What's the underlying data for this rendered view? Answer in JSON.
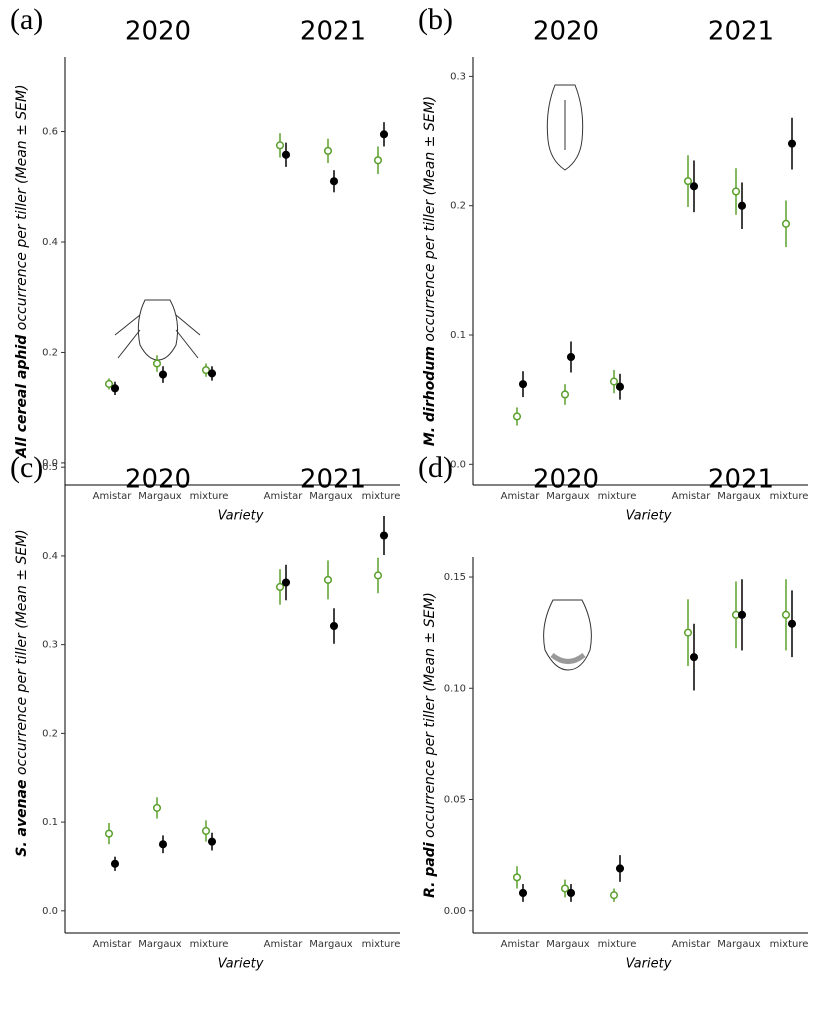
{
  "chart_data": [
    {
      "type": "dotplot",
      "panel_label": "(a)",
      "ylabel_species": "All cereal aphid",
      "ylabel": "occurrence per tiller (Mean ± SEM)",
      "xlabel": "Variety",
      "groups": [
        "2020",
        "2021"
      ],
      "categories": [
        "Amistar",
        "Margaux",
        "mixture",
        "Amistar",
        "Margaux",
        "mixture"
      ],
      "ylim": [
        -0.04,
        0.735
      ],
      "yticks": [
        {
          "value": 0,
          "label": "0.0"
        },
        0.2,
        0.4,
        0.6
      ],
      "series": [
        {
          "color": "#5aa02c",
          "marker": "open",
          "values": [
            0.143,
            0.18,
            0.168,
            0.575,
            0.565,
            0.548
          ],
          "errors": [
            0.01,
            0.015,
            0.012,
            0.022,
            0.022,
            0.025
          ]
        },
        {
          "color": "#000000",
          "marker": "filled",
          "values": [
            0.135,
            0.16,
            0.162,
            0.558,
            0.51,
            0.595
          ],
          "errors": [
            0.012,
            0.015,
            0.013,
            0.022,
            0.02,
            0.022
          ]
        }
      ]
    },
    {
      "type": "dotplot",
      "panel_label": "(b)",
      "ylabel_species": "M. dirhodum",
      "ylabel": "occurrence per tiller (Mean ± SEM)",
      "xlabel": "Variety",
      "groups": [
        "2020",
        "2021"
      ],
      "categories": [
        "Amistar",
        "Margaux",
        "mixture",
        "Amistar",
        "Margaux",
        "mixture"
      ],
      "ylim": [
        -0.016,
        0.315
      ],
      "yticks": [
        {
          "value": 0,
          "label": "0.0"
        },
        0.1,
        0.2,
        0.3
      ],
      "series": [
        {
          "color": "#5aa02c",
          "marker": "open",
          "values": [
            0.037,
            0.054,
            0.064,
            0.219,
            0.211,
            0.186
          ],
          "errors": [
            0.007,
            0.008,
            0.009,
            0.02,
            0.018,
            0.018
          ]
        },
        {
          "color": "#000000",
          "marker": "filled",
          "values": [
            0.062,
            0.083,
            0.06,
            0.215,
            0.2,
            0.248
          ],
          "errors": [
            0.01,
            0.012,
            0.01,
            0.02,
            0.018,
            0.02
          ]
        }
      ]
    },
    {
      "type": "dotplot",
      "panel_label": "(c)",
      "ylabel_species": "S. avenae",
      "ylabel": "occurrence per tiller (Mean ± SEM)",
      "xlabel": "Variety",
      "groups": [
        "2020",
        "2021"
      ],
      "categories": [
        "Amistar",
        "Margaux",
        "mixture",
        "Amistar",
        "Margaux",
        "mixture"
      ],
      "ylim": [
        -0.025,
        0.516
      ],
      "yticks": [
        {
          "value": 0,
          "label": "0.0"
        },
        0.1,
        0.2,
        0.3,
        0.4,
        0.5
      ],
      "series": [
        {
          "color": "#5aa02c",
          "marker": "open",
          "values": [
            0.087,
            0.116,
            0.09,
            0.365,
            0.373,
            0.378
          ],
          "errors": [
            0.012,
            0.012,
            0.012,
            0.02,
            0.022,
            0.02
          ]
        },
        {
          "color": "#000000",
          "marker": "filled",
          "values": [
            0.053,
            0.075,
            0.078,
            0.37,
            0.321,
            0.423
          ],
          "errors": [
            0.008,
            0.01,
            0.01,
            0.02,
            0.02,
            0.022
          ]
        }
      ]
    },
    {
      "type": "dotplot",
      "panel_label": "(d)",
      "ylabel_species": "R. padi",
      "ylabel": "occurrence per tiller (Mean ± SEM)",
      "xlabel": "Variety",
      "groups": [
        "2020",
        "2021"
      ],
      "categories": [
        "Amistar",
        "Margaux",
        "mixture",
        "Amistar",
        "Margaux",
        "mixture"
      ],
      "ylim": [
        -0.01,
        0.159
      ],
      "yticks": [
        {
          "value": 0,
          "label": "0.00"
        },
        0.05,
        {
          "value": 0.1,
          "label": "0.10"
        },
        0.15
      ],
      "series": [
        {
          "color": "#5aa02c",
          "marker": "open",
          "values": [
            0.015,
            0.01,
            0.007,
            0.125,
            0.133,
            0.133
          ],
          "errors": [
            0.005,
            0.004,
            0.003,
            0.015,
            0.015,
            0.016
          ]
        },
        {
          "color": "#000000",
          "marker": "filled",
          "values": [
            0.008,
            0.008,
            0.019,
            0.114,
            0.133,
            0.129
          ],
          "errors": [
            0.004,
            0.004,
            0.006,
            0.015,
            0.016,
            0.015
          ]
        }
      ]
    }
  ]
}
